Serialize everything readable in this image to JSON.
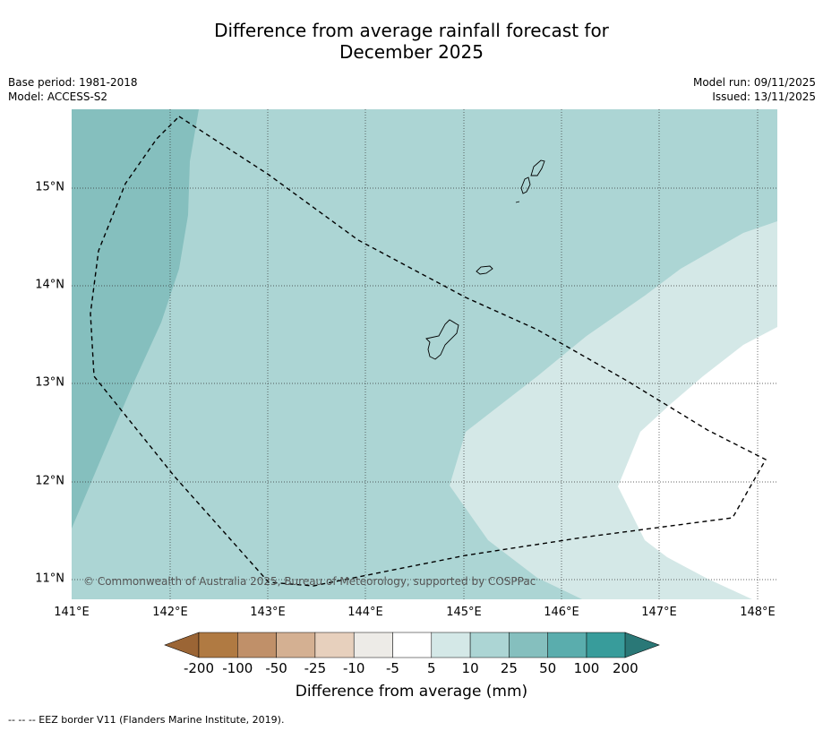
{
  "title": {
    "line1": "Difference from average rainfall forecast for",
    "line2": "December 2025"
  },
  "meta": {
    "base_period": "Base period: 1981-2018",
    "model": "Model: ACCESS-S2",
    "model_run": "Model run: 09/11/2025",
    "issued": "Issued: 13/11/2025"
  },
  "map": {
    "x_ticks": [
      "141°E",
      "142°E",
      "143°E",
      "144°E",
      "145°E",
      "146°E",
      "147°E",
      "148°E"
    ],
    "y_ticks": [
      "15°N",
      "14°N",
      "13°N",
      "12°N",
      "11°N"
    ],
    "copyright": "© Commonwealth of Australia 2025, Bureau of Meteorology, supported by COSPPac"
  },
  "colorbar": {
    "ticks": [
      "-200",
      "-100",
      "-50",
      "-25",
      "-10",
      "-5",
      "5",
      "10",
      "25",
      "50",
      "100",
      "200"
    ],
    "colors": [
      "#9b6535",
      "#b07a42",
      "#c09069",
      "#d4b092",
      "#e7d0bd",
      "#edebe7",
      "#ffffff",
      "#d4e8e7",
      "#acd5d4",
      "#85bfbe",
      "#5aadad",
      "#389c9b",
      "#2a7877"
    ],
    "label": "Difference from average (mm)"
  },
  "legend": {
    "eez_text": "--  --  -- EEZ border V11 (Flanders Marine Institute, 2019)."
  }
}
